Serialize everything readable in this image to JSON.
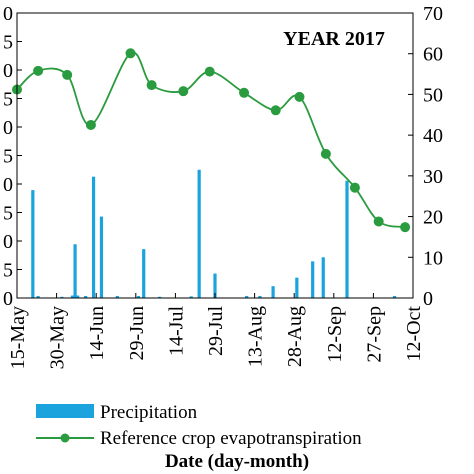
{
  "chart_data": {
    "type": "bar+line",
    "title": "YEAR 2017",
    "xlabel": "Date (day-month)",
    "x_axis": {
      "start": "2017-05-15",
      "end": "2017-10-12",
      "tick_labels": [
        "15-May",
        "30-May",
        "14-Jun",
        "29-Jun",
        "14-Jul",
        "29-Jul",
        "13-Aug",
        "28-Aug",
        "12-Sep",
        "27-Sep",
        "12-Oct"
      ]
    },
    "left_axis": {
      "ylim": [
        0,
        70
      ],
      "tick_labels": [
        "0",
        "5",
        "0",
        "5",
        "0",
        "5",
        "0",
        "5",
        "0",
        "5",
        "0"
      ]
    },
    "right_axis": {
      "ylim": [
        0,
        70
      ],
      "tick_labels": [
        "0",
        "10",
        "20",
        "30",
        "40",
        "50",
        "60",
        "70"
      ]
    },
    "series": [
      {
        "name": "Precipitation",
        "type": "bar",
        "axis": "left",
        "color": "#1aa3dd",
        "points": [
          {
            "x": "2017-05-21",
            "y": 26.5
          },
          {
            "x": "2017-05-23",
            "y": 0.5
          },
          {
            "x": "2017-06-01",
            "y": 0.3
          },
          {
            "x": "2017-06-05",
            "y": 0.6
          },
          {
            "x": "2017-06-06",
            "y": 13.2
          },
          {
            "x": "2017-06-07",
            "y": 0.6
          },
          {
            "x": "2017-06-10",
            "y": 0.5
          },
          {
            "x": "2017-06-13",
            "y": 29.8
          },
          {
            "x": "2017-06-16",
            "y": 20.0
          },
          {
            "x": "2017-06-22",
            "y": 0.5
          },
          {
            "x": "2017-06-30",
            "y": 0.5
          },
          {
            "x": "2017-07-02",
            "y": 12.0
          },
          {
            "x": "2017-07-08",
            "y": 0.3
          },
          {
            "x": "2017-07-20",
            "y": 0.4
          },
          {
            "x": "2017-07-23",
            "y": 31.5
          },
          {
            "x": "2017-07-29",
            "y": 6.0
          },
          {
            "x": "2017-08-10",
            "y": 0.5
          },
          {
            "x": "2017-08-15",
            "y": 0.5
          },
          {
            "x": "2017-08-20",
            "y": 2.9
          },
          {
            "x": "2017-08-29",
            "y": 5.0
          },
          {
            "x": "2017-09-04",
            "y": 9.0
          },
          {
            "x": "2017-09-08",
            "y": 10.0
          },
          {
            "x": "2017-09-17",
            "y": 28.8
          },
          {
            "x": "2017-10-05",
            "y": 0.5
          }
        ]
      },
      {
        "name": "Reference crop evapotranspiration",
        "type": "line",
        "axis": "right",
        "color": "#2a9b3f",
        "marker": "circle",
        "points": [
          {
            "x": "2017-05-15",
            "y": 51.2
          },
          {
            "x": "2017-05-23",
            "y": 55.8
          },
          {
            "x": "2017-06-03",
            "y": 54.8
          },
          {
            "x": "2017-06-12",
            "y": 42.5
          },
          {
            "x": "2017-06-27",
            "y": 60.1
          },
          {
            "x": "2017-07-05",
            "y": 52.3
          },
          {
            "x": "2017-07-17",
            "y": 50.8
          },
          {
            "x": "2017-07-27",
            "y": 55.6
          },
          {
            "x": "2017-08-09",
            "y": 50.4
          },
          {
            "x": "2017-08-21",
            "y": 46.1
          },
          {
            "x": "2017-08-30",
            "y": 49.4
          },
          {
            "x": "2017-09-09",
            "y": 35.4
          },
          {
            "x": "2017-09-20",
            "y": 27.1
          },
          {
            "x": "2017-09-29",
            "y": 18.8
          },
          {
            "x": "2017-10-09",
            "y": 17.4
          }
        ]
      }
    ],
    "legend_position": "bottom"
  }
}
